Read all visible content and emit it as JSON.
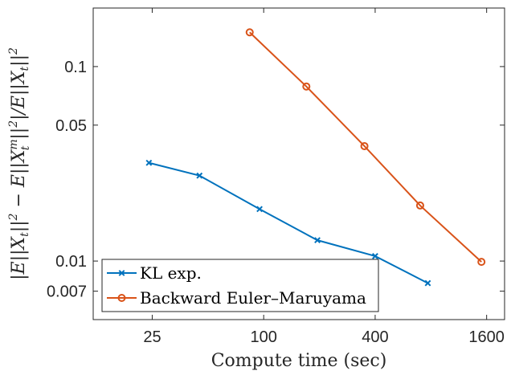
{
  "chart_data": {
    "type": "line",
    "xlabel": "Compute time (sec)",
    "ylabel": "|E||X_t||² − E||X_t^m||²| / E||X_t||²",
    "xscale": "log",
    "yscale": "log",
    "xlim": [
      12,
      2000
    ],
    "ylim": [
      0.005,
      0.2
    ],
    "xticks": [
      25,
      100,
      400,
      1600
    ],
    "xtick_labels": [
      "25",
      "100",
      "400",
      "1600"
    ],
    "yticks": [
      0.007,
      0.01,
      0.05,
      0.1
    ],
    "ytick_labels": [
      "0.007",
      "0.01",
      "0.05",
      "0.1"
    ],
    "grid": false,
    "legend_position": "bottom-left",
    "series": [
      {
        "name": "KL exp.",
        "color": "#0072BD",
        "marker": "x",
        "x": [
          24,
          45,
          95,
          195,
          400,
          770
        ],
        "y": [
          0.032,
          0.0275,
          0.0185,
          0.0128,
          0.0106,
          0.0077
        ]
      },
      {
        "name": "Backward Euler–Maruyama",
        "color": "#D95319",
        "marker": "o",
        "x": [
          84,
          170,
          350,
          700,
          1500
        ],
        "y": [
          0.15,
          0.079,
          0.039,
          0.0193,
          0.0099
        ]
      }
    ]
  }
}
